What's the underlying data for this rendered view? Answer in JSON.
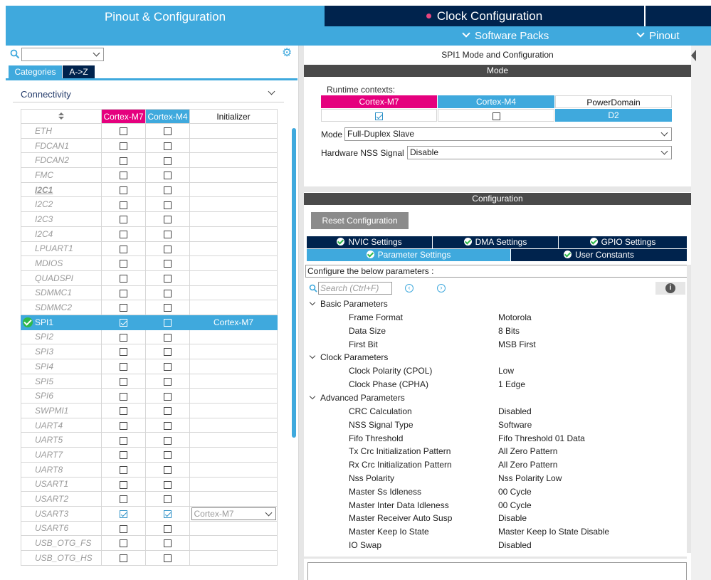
{
  "top_tabs": {
    "pinout_config": "Pinout & Configuration",
    "clock_config": "Clock Configuration"
  },
  "top_menu": {
    "software_packs": "Software Packs",
    "pinout": "Pinout"
  },
  "left": {
    "categories_tab": "Categories",
    "az_tab": "A->Z",
    "group": "Connectivity",
    "headers": {
      "sort": "",
      "m7": "Cortex-M7",
      "m4": "Cortex-M4",
      "initializer": "Initializer"
    },
    "rows": [
      {
        "name": "ETH",
        "m7": false,
        "m4": false,
        "init": ""
      },
      {
        "name": "FDCAN1",
        "m7": false,
        "m4": false,
        "init": ""
      },
      {
        "name": "FDCAN2",
        "m7": false,
        "m4": false,
        "init": ""
      },
      {
        "name": "FMC",
        "m7": false,
        "m4": false,
        "init": ""
      },
      {
        "name": "I2C1",
        "m7": false,
        "m4": false,
        "init": "",
        "bold": true
      },
      {
        "name": "I2C2",
        "m7": false,
        "m4": false,
        "init": ""
      },
      {
        "name": "I2C3",
        "m7": false,
        "m4": false,
        "init": ""
      },
      {
        "name": "I2C4",
        "m7": false,
        "m4": false,
        "init": ""
      },
      {
        "name": "LPUART1",
        "m7": false,
        "m4": false,
        "init": ""
      },
      {
        "name": "MDIOS",
        "m7": false,
        "m4": false,
        "init": ""
      },
      {
        "name": "QUADSPI",
        "m7": false,
        "m4": false,
        "init": ""
      },
      {
        "name": "SDMMC1",
        "m7": false,
        "m4": false,
        "init": ""
      },
      {
        "name": "SDMMC2",
        "m7": false,
        "m4": false,
        "init": ""
      },
      {
        "name": "SPI1",
        "m7": true,
        "m4": false,
        "init": "Cortex-M7",
        "selected": true
      },
      {
        "name": "SPI2",
        "m7": false,
        "m4": false,
        "init": ""
      },
      {
        "name": "SPI3",
        "m7": false,
        "m4": false,
        "init": ""
      },
      {
        "name": "SPI4",
        "m7": false,
        "m4": false,
        "init": ""
      },
      {
        "name": "SPI5",
        "m7": false,
        "m4": false,
        "init": ""
      },
      {
        "name": "SPI6",
        "m7": false,
        "m4": false,
        "init": ""
      },
      {
        "name": "SWPMI1",
        "m7": false,
        "m4": false,
        "init": ""
      },
      {
        "name": "UART4",
        "m7": false,
        "m4": false,
        "init": ""
      },
      {
        "name": "UART5",
        "m7": false,
        "m4": false,
        "init": ""
      },
      {
        "name": "UART7",
        "m7": false,
        "m4": false,
        "init": ""
      },
      {
        "name": "UART8",
        "m7": false,
        "m4": false,
        "init": ""
      },
      {
        "name": "USART1",
        "m7": false,
        "m4": false,
        "init": ""
      },
      {
        "name": "USART2",
        "m7": false,
        "m4": false,
        "init": ""
      },
      {
        "name": "USART3",
        "m7": true,
        "m4": true,
        "init": "Cortex-M7",
        "dropdown": true
      },
      {
        "name": "USART6",
        "m7": false,
        "m4": false,
        "init": ""
      },
      {
        "name": "USB_OTG_FS",
        "m7": false,
        "m4": false,
        "init": ""
      },
      {
        "name": "USB_OTG_HS",
        "m7": false,
        "m4": false,
        "init": ""
      }
    ]
  },
  "right": {
    "title": "SPI1 Mode and Configuration",
    "mode_bar": "Mode",
    "runtime_label": "Runtime contexts:",
    "ctx": {
      "m7": "Cortex-M7",
      "m4": "Cortex-M4",
      "power": "PowerDomain",
      "power_val": "D2",
      "m7_checked": true,
      "m4_checked": false
    },
    "mode_label": "Mode",
    "mode_value": "Full-Duplex Slave",
    "nss_label": "Hardware NSS Signal",
    "nss_value": "Disable",
    "config_bar": "Configuration",
    "reset_btn": "Reset Configuration",
    "tabs": {
      "nvic": "NVIC Settings",
      "dma": "DMA Settings",
      "gpio": "GPIO Settings",
      "param": "Parameter Settings",
      "user": "User Constants"
    },
    "configure_text": "Configure the below parameters :",
    "search_placeholder": "Search (Ctrl+F)",
    "groups": [
      {
        "name": "Basic Parameters",
        "params": [
          {
            "k": "Frame Format",
            "v": "Motorola"
          },
          {
            "k": "Data Size",
            "v": "8 Bits"
          },
          {
            "k": "First Bit",
            "v": "MSB First"
          }
        ]
      },
      {
        "name": "Clock Parameters",
        "params": [
          {
            "k": "Clock Polarity (CPOL)",
            "v": "Low"
          },
          {
            "k": "Clock Phase (CPHA)",
            "v": "1 Edge"
          }
        ]
      },
      {
        "name": "Advanced Parameters",
        "params": [
          {
            "k": "CRC Calculation",
            "v": "Disabled"
          },
          {
            "k": "NSS Signal Type",
            "v": "Software"
          },
          {
            "k": "Fifo Threshold",
            "v": "Fifo Threshold 01 Data"
          },
          {
            "k": "Tx Crc Initialization Pattern",
            "v": "All Zero Pattern"
          },
          {
            "k": "Rx Crc Initialization Pattern",
            "v": "All Zero Pattern"
          },
          {
            "k": "Nss Polarity",
            "v": "Nss Polarity Low"
          },
          {
            "k": "Master Ss Idleness",
            "v": "00 Cycle"
          },
          {
            "k": "Master Inter Data Idleness",
            "v": "00 Cycle"
          },
          {
            "k": "Master Receiver Auto Susp",
            "v": "Disable"
          },
          {
            "k": "Master Keep Io State",
            "v": "Master Keep Io State Disable"
          },
          {
            "k": "IO Swap",
            "v": "Disabled"
          }
        ]
      }
    ]
  }
}
